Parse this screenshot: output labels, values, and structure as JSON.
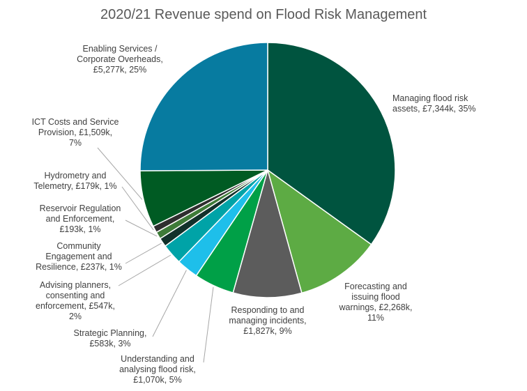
{
  "chart_data": {
    "type": "pie",
    "title": "2020/21 Revenue spend on Flood Risk Management",
    "slices": [
      {
        "label": "Managing flood risk assets",
        "value_k": 7344,
        "percent": 35,
        "color": "#00543F",
        "text": "Managing flood risk\nassets, £7,344k, 35%"
      },
      {
        "label": "Forecasting and issuing flood warnings",
        "value_k": 2268,
        "percent": 11,
        "color": "#5DAB44",
        "text": "Forecasting and\nissuing flood\nwarnings, £2,268k,\n11%"
      },
      {
        "label": "Responding to and managing incidents",
        "value_k": 1827,
        "percent": 9,
        "color": "#5C5C5C",
        "text": "Responding to and\nmanaging incidents,\n£1,827k, 9%"
      },
      {
        "label": "Understanding and analysing flood risk",
        "value_k": 1070,
        "percent": 5,
        "color": "#00A047",
        "text": "Understanding and\nanalysing flood risk,\n£1,070k, 5%"
      },
      {
        "label": "Strategic Planning",
        "value_k": 583,
        "percent": 3,
        "color": "#1EBFEA",
        "text": "Strategic Planning,\n£583k, 3%"
      },
      {
        "label": "Advising planners, consenting and enforcement",
        "value_k": 547,
        "percent": 2,
        "color": "#00A3A7",
        "text": "Advising planners,\nconsenting and\nenforcement, £547k,\n2%"
      },
      {
        "label": "Community Engagement and Resilience",
        "value_k": 237,
        "percent": 1,
        "color": "#12312A",
        "text": "Community\nEngagement and\nResilience, £237k, 1%"
      },
      {
        "label": "Reservoir Regulation and Enforcement",
        "value_k": 193,
        "percent": 1,
        "color": "#3E7B38",
        "text": "Reservoir Regulation\nand Enforcement,\n£193k, 1%"
      },
      {
        "label": "Hydrometry and Telemetry",
        "value_k": 179,
        "percent": 1,
        "color": "#2E2E2E",
        "text": "Hydrometry and\nTelemetry, £179k, 1%"
      },
      {
        "label": "ICT Costs and Service Provision",
        "value_k": 1509,
        "percent": 7,
        "color": "#005B23",
        "text": "ICT Costs and Service\nProvision, £1,509k,\n7%"
      },
      {
        "label": "Enabling Services / Corporate Overheads",
        "value_k": 5277,
        "percent": 25,
        "color": "#077BA0",
        "text": "Enabling Services /\nCorporate Overheads,\n£5,277k, 25%"
      }
    ]
  }
}
